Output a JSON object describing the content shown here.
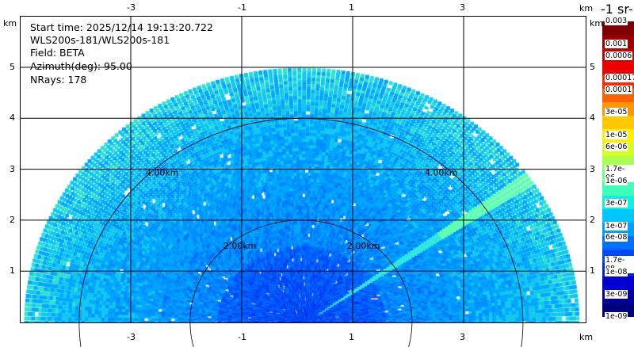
{
  "info": {
    "start_time": "Start time: 2025/12/14 19:13:20.722",
    "instrument": "WLS200s-181/WLS200s-181",
    "field": "Field: BETA",
    "azimuth": "Azimuth(deg): 95.00",
    "nrays": "NRays: 178"
  },
  "chart_data": {
    "type": "heatmap",
    "subtype": "RHI polar scan",
    "xunit": "km",
    "yunit": "km",
    "x_ticks": [
      "-3",
      "-1",
      "1",
      "3"
    ],
    "x_tick_values": [
      -3,
      -1,
      1,
      3
    ],
    "y_ticks": [
      "1",
      "2",
      "3",
      "4",
      "5"
    ],
    "y_tick_values": [
      1,
      2,
      3,
      4,
      5
    ],
    "xlim": [
      -5,
      5.2
    ],
    "ylim": [
      0,
      5.4
    ],
    "max_range_km": 5,
    "range_rings": [
      {
        "value": 2,
        "label": "2.00km"
      },
      {
        "value": 4,
        "label": "4.00km"
      }
    ],
    "colorbar": {
      "title": "-1 sr-",
      "labels": [
        "0.003",
        "0.001",
        "0.0006",
        "0.00017",
        "0.0001",
        "3e-05",
        "1e-05",
        "6e-06",
        "1.7e-06",
        "1e-06",
        "3e-07",
        "1e-07",
        "6e-08",
        "1.7e-08",
        "1e-08",
        "3e-09",
        "1e-09"
      ],
      "colors": [
        "#7f0000",
        "#9a0000",
        "#c40000",
        "#ee0000",
        "#ff2a00",
        "#ff6000",
        "#ff9800",
        "#ffc800",
        "#fff000",
        "#d8ff20",
        "#a8ff50",
        "#70ff88",
        "#40ffb8",
        "#10f0e0",
        "#00c8ff",
        "#00a0ff",
        "#0070ff",
        "#0048ff",
        "#0020f0",
        "#0000d0",
        "#0000a0",
        "#00007a"
      ]
    },
    "grid": true
  }
}
